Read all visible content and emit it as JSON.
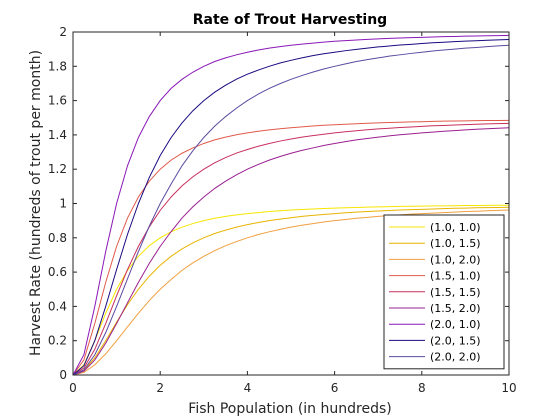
{
  "chart_data": {
    "type": "line",
    "title": "Rate of Trout Harvesting",
    "xlabel": "Fish Population (in hundreds)",
    "ylabel": "Harvest Rate (hundreds of trout per month)",
    "xlim": [
      0,
      10
    ],
    "ylim": [
      0,
      2
    ],
    "x_ticks": [
      "0",
      "2",
      "4",
      "6",
      "8",
      "10"
    ],
    "y_ticks": [
      "0",
      "0.2",
      "0.4",
      "0.6",
      "0.8",
      "1",
      "1.2",
      "1.4",
      "1.6",
      "1.8",
      "2"
    ],
    "grid": false,
    "box": true,
    "legend_position": "bottom-right",
    "x": [
      0,
      0.25,
      0.5,
      0.75,
      1,
      1.25,
      1.5,
      1.75,
      2,
      2.25,
      2.5,
      2.75,
      3,
      3.25,
      3.5,
      3.75,
      4,
      4.25,
      4.5,
      4.75,
      5,
      5.25,
      5.5,
      5.75,
      6,
      6.25,
      6.5,
      6.75,
      7,
      7.25,
      7.5,
      7.75,
      8,
      8.25,
      8.5,
      8.75,
      9,
      9.25,
      9.5,
      9.75,
      10
    ],
    "series": [
      {
        "name": "(1.0, 1.0)",
        "color": "#f5e600",
        "values": [
          0,
          0.059,
          0.2,
          0.36,
          0.5,
          0.61,
          0.692,
          0.754,
          0.8,
          0.835,
          0.862,
          0.883,
          0.9,
          0.914,
          0.925,
          0.934,
          0.941,
          0.947,
          0.953,
          0.958,
          0.962,
          0.965,
          0.968,
          0.971,
          0.973,
          0.975,
          0.977,
          0.979,
          0.98,
          0.982,
          0.983,
          0.984,
          0.985,
          0.986,
          0.986,
          0.987,
          0.988,
          0.988,
          0.989,
          0.99,
          0.99
        ]
      },
      {
        "name": "(1.0, 1.5)",
        "color": "#e8b400",
        "values": [
          0,
          0.027,
          0.1,
          0.2,
          0.308,
          0.41,
          0.5,
          0.576,
          0.64,
          0.692,
          0.735,
          0.771,
          0.8,
          0.825,
          0.845,
          0.862,
          0.877,
          0.889,
          0.9,
          0.909,
          0.917,
          0.925,
          0.931,
          0.936,
          0.941,
          0.946,
          0.95,
          0.953,
          0.956,
          0.959,
          0.962,
          0.964,
          0.966,
          0.968,
          0.97,
          0.972,
          0.973,
          0.975,
          0.976,
          0.977,
          0.978
        ]
      },
      {
        "name": "(1.0, 2.0)",
        "color": "#f0a040",
        "values": [
          0,
          0.015,
          0.059,
          0.123,
          0.2,
          0.281,
          0.36,
          0.434,
          0.5,
          0.557,
          0.61,
          0.654,
          0.692,
          0.725,
          0.754,
          0.778,
          0.8,
          0.819,
          0.835,
          0.849,
          0.862,
          0.873,
          0.883,
          0.892,
          0.9,
          0.907,
          0.914,
          0.919,
          0.925,
          0.929,
          0.934,
          0.938,
          0.941,
          0.944,
          0.947,
          0.95,
          0.953,
          0.955,
          0.958,
          0.96,
          0.962
        ]
      },
      {
        "name": "(1.5, 1.0)",
        "color": "#e05a4a",
        "values": [
          0,
          0.088,
          0.3,
          0.54,
          0.75,
          0.915,
          1.038,
          1.13,
          1.2,
          1.253,
          1.293,
          1.324,
          1.35,
          1.371,
          1.387,
          1.401,
          1.412,
          1.421,
          1.429,
          1.436,
          1.442,
          1.447,
          1.452,
          1.456,
          1.459,
          1.462,
          1.465,
          1.468,
          1.47,
          1.472,
          1.474,
          1.476,
          1.477,
          1.479,
          1.48,
          1.481,
          1.482,
          1.483,
          1.484,
          1.484,
          1.485
        ]
      },
      {
        "name": "(1.5, 1.5)",
        "color": "#c8305e",
        "values": [
          0,
          0.041,
          0.15,
          0.3,
          0.462,
          0.615,
          0.75,
          0.864,
          0.96,
          1.038,
          1.103,
          1.156,
          1.2,
          1.237,
          1.268,
          1.294,
          1.315,
          1.334,
          1.35,
          1.364,
          1.376,
          1.387,
          1.396,
          1.404,
          1.412,
          1.418,
          1.424,
          1.43,
          1.435,
          1.439,
          1.443,
          1.446,
          1.45,
          1.453,
          1.455,
          1.458,
          1.46,
          1.462,
          1.464,
          1.466,
          1.467
        ]
      },
      {
        "name": "(1.5, 2.0)",
        "color": "#9a2090",
        "values": [
          0,
          0.022,
          0.088,
          0.185,
          0.3,
          0.421,
          0.54,
          0.651,
          0.75,
          0.836,
          0.915,
          0.981,
          1.038,
          1.088,
          1.13,
          1.167,
          1.2,
          1.228,
          1.253,
          1.274,
          1.293,
          1.31,
          1.324,
          1.338,
          1.35,
          1.361,
          1.371,
          1.379,
          1.387,
          1.394,
          1.401,
          1.406,
          1.412,
          1.416,
          1.421,
          1.425,
          1.429,
          1.433,
          1.436,
          1.439,
          1.442
        ]
      },
      {
        "name": "(2.0, 1.0)",
        "color": "#8a18b8",
        "values": [
          0,
          0.118,
          0.4,
          0.72,
          1,
          1.22,
          1.385,
          1.507,
          1.6,
          1.671,
          1.724,
          1.766,
          1.8,
          1.828,
          1.849,
          1.867,
          1.882,
          1.895,
          1.906,
          1.915,
          1.923,
          1.929,
          1.935,
          1.941,
          1.946,
          1.95,
          1.953,
          1.957,
          1.96,
          1.963,
          1.965,
          1.967,
          1.969,
          1.971,
          1.973,
          1.974,
          1.976,
          1.977,
          1.978,
          1.979,
          1.98
        ]
      },
      {
        "name": "(2.0, 1.5)",
        "color": "#180a80",
        "values": [
          0,
          0.054,
          0.2,
          0.4,
          0.615,
          0.82,
          1,
          1.152,
          1.28,
          1.384,
          1.47,
          1.541,
          1.6,
          1.649,
          1.69,
          1.725,
          1.754,
          1.778,
          1.8,
          1.819,
          1.835,
          1.849,
          1.862,
          1.873,
          1.882,
          1.891,
          1.899,
          1.906,
          1.913,
          1.918,
          1.924,
          1.928,
          1.933,
          1.937,
          1.94,
          1.944,
          1.947,
          1.949,
          1.952,
          1.954,
          1.956
        ]
      },
      {
        "name": "(2.0, 2.0)",
        "color": "#5a4aa0",
        "values": [
          0,
          0.03,
          0.118,
          0.247,
          0.4,
          0.561,
          0.72,
          0.868,
          1,
          1.114,
          1.22,
          1.308,
          1.385,
          1.451,
          1.507,
          1.556,
          1.6,
          1.638,
          1.671,
          1.699,
          1.724,
          1.746,
          1.766,
          1.784,
          1.8,
          1.814,
          1.828,
          1.839,
          1.849,
          1.859,
          1.867,
          1.875,
          1.882,
          1.889,
          1.895,
          1.9,
          1.906,
          1.91,
          1.915,
          1.919,
          1.923
        ]
      }
    ]
  }
}
